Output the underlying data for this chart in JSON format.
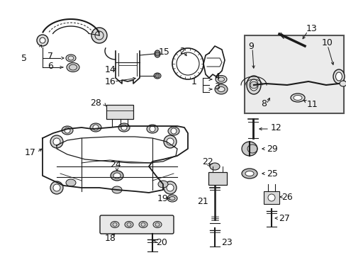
{
  "background": "#ffffff",
  "line_color": "#1a1a1a",
  "gray_fill": "#c8c8c8",
  "light_gray": "#e8e8e8",
  "box_bg": "#e0e0e0",
  "font_size": 8.5
}
